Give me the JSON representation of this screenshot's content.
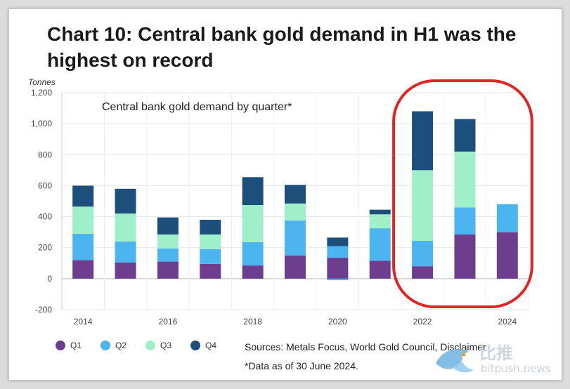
{
  "title": "Chart 10: Central bank gold demand in H1 was the highest on record",
  "brand": {
    "cn": "比推",
    "url": "bitpush.news"
  },
  "chart_data": {
    "type": "bar",
    "stacked": true,
    "subtitle": "Central bank gold demand by quarter*",
    "ylabel": "Tonnes",
    "xlabel": "",
    "ylim": [
      -200,
      1200
    ],
    "yticks": [
      -200,
      0,
      200,
      400,
      600,
      800,
      "1,000",
      "1,200"
    ],
    "ytick_values": [
      -200,
      0,
      200,
      400,
      600,
      800,
      1000,
      1200
    ],
    "categories": [
      "2014",
      "2015",
      "2016",
      "2017",
      "2018",
      "2019",
      "2020",
      "2021",
      "2022",
      "2023",
      "2024"
    ],
    "xtick_labels": [
      "2014",
      "",
      "2016",
      "",
      "2018",
      "",
      "2020",
      "",
      "2022",
      "",
      "2024"
    ],
    "series": [
      {
        "name": "Q1",
        "color": "#6d3d8e",
        "values": [
          120,
          105,
          110,
          95,
          85,
          150,
          135,
          115,
          80,
          285,
          300
        ]
      },
      {
        "name": "Q2",
        "color": "#4cb4ee",
        "values": [
          170,
          135,
          85,
          95,
          150,
          225,
          75,
          210,
          165,
          175,
          180
        ]
      },
      {
        "name": "Q3",
        "color": "#9ff0c8",
        "values": [
          175,
          180,
          90,
          95,
          240,
          110,
          0,
          90,
          455,
          360,
          0
        ]
      },
      {
        "name": "Q4",
        "color": "#1d4f7c",
        "values": [
          135,
          160,
          110,
          95,
          180,
          120,
          55,
          30,
          380,
          210,
          0
        ]
      }
    ],
    "negative_values": {
      "2020": -10
    },
    "highlight": {
      "categories": [
        "2022",
        "2023",
        "2024"
      ],
      "color": "#e02525",
      "shape": "rounded-rect"
    },
    "legend": {
      "position": "bottom-left",
      "entries": [
        "Q1",
        "Q2",
        "Q3",
        "Q4"
      ]
    },
    "grid": true,
    "sources": "Sources: Metals Focus, World Gold Council, Disclaimer",
    "note": "*Data as of 30 June 2024."
  }
}
